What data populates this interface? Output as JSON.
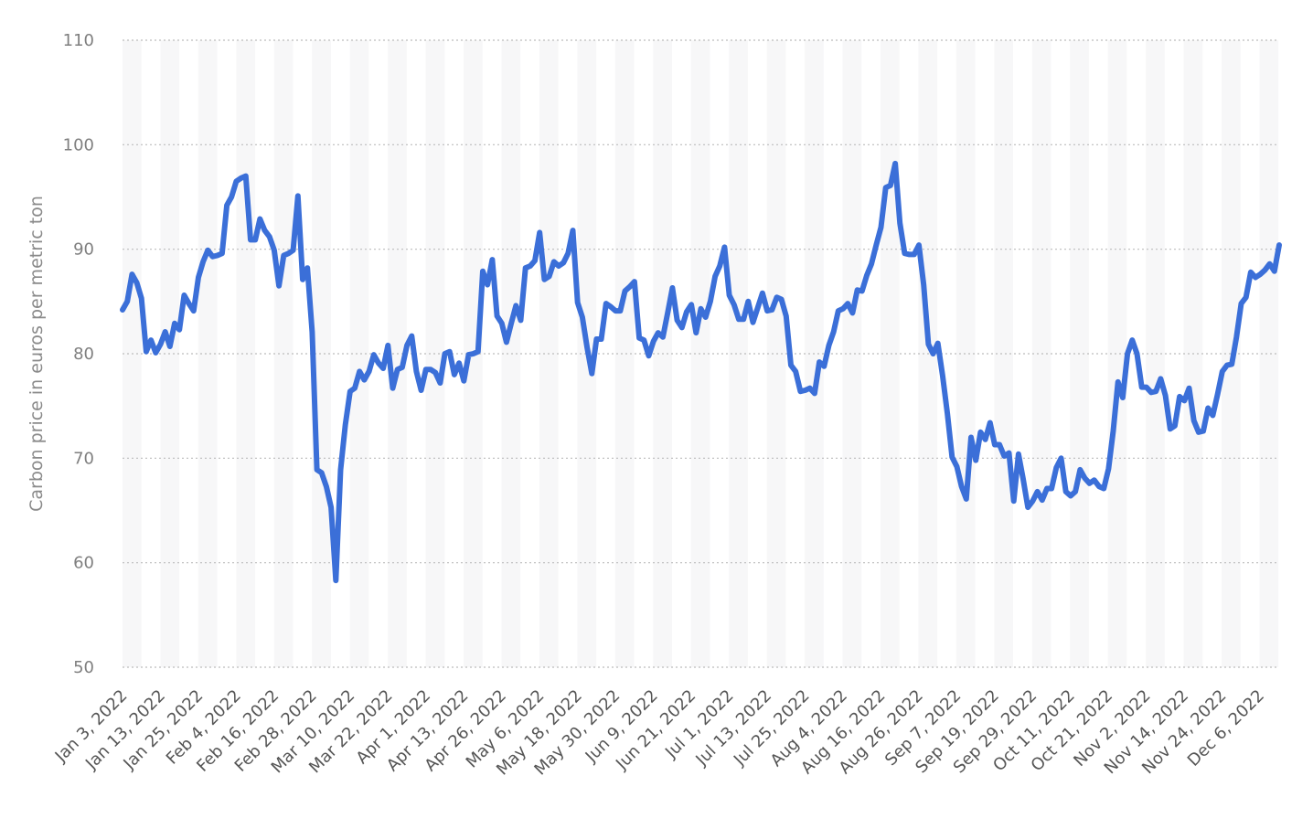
{
  "chart_data": {
    "type": "line",
    "title": "",
    "xlabel": "",
    "ylabel": "Carbon price in euros per metric ton",
    "ylim": [
      50,
      110
    ],
    "yticks": [
      50,
      60,
      70,
      80,
      90,
      100,
      110
    ],
    "grid": true,
    "legend": "none",
    "xtick_labels": [
      "Jan 3, 2022",
      "Jan 13, 2022",
      "Jan 25, 2022",
      "Feb 4, 2022",
      "Feb 16, 2022",
      "Feb 28, 2022",
      "Mar 10, 2022",
      "Mar 22, 2022",
      "Apr 1, 2022",
      "Apr 13, 2022",
      "Apr 26, 2022",
      "May 6, 2022",
      "May 18, 2022",
      "May 30, 2022",
      "Jun 9, 2022",
      "Jun 21, 2022",
      "Jul 1, 2022",
      "Jul 13, 2022",
      "Jul 25, 2022",
      "Aug 4, 2022",
      "Aug 16, 2022",
      "Aug 26, 2022",
      "Sep 7, 2022",
      "Sep 19, 2022",
      "Sep 29, 2022",
      "Oct 11, 2022",
      "Oct 21, 2022",
      "Nov 2, 2022",
      "Nov 14, 2022",
      "Nov 24, 2022",
      "Dec 6, 2022"
    ],
    "series": [
      {
        "color": "#3b6fd8",
        "values": [
          84.2,
          85.0,
          87.6,
          86.8,
          85.3,
          80.2,
          81.3,
          80.1,
          80.9,
          82.1,
          80.7,
          82.9,
          82.3,
          85.6,
          84.8,
          84.1,
          87.3,
          88.8,
          89.9,
          89.3,
          89.4,
          89.6,
          94.2,
          95.0,
          96.5,
          96.8,
          97.0,
          90.9,
          90.9,
          92.9,
          91.8,
          91.2,
          89.9,
          86.5,
          89.4,
          89.6,
          89.9,
          95.1,
          87.1,
          88.2,
          82.1,
          68.9,
          68.6,
          67.3,
          65.3,
          58.3,
          68.9,
          73.2,
          76.4,
          76.7,
          78.3,
          77.5,
          78.3,
          79.9,
          79.1,
          78.6,
          80.8,
          76.7,
          78.5,
          78.7,
          80.8,
          81.7,
          78.3,
          76.5,
          78.5,
          78.5,
          78.2,
          77.2,
          80.0,
          80.2,
          78.0,
          79.1,
          77.4,
          79.9,
          80.0,
          80.2,
          87.9,
          86.6,
          89.0,
          83.6,
          82.9,
          81.1,
          82.9,
          84.6,
          83.2,
          88.2,
          88.4,
          88.9,
          91.6,
          87.1,
          87.4,
          88.8,
          88.4,
          88.7,
          89.6,
          91.8,
          84.9,
          83.5,
          80.6,
          78.1,
          81.4,
          81.4,
          84.8,
          84.5,
          84.1,
          84.1,
          86.0,
          86.4,
          86.9,
          81.5,
          81.3,
          79.8,
          81.2,
          82.0,
          81.6,
          83.9,
          86.3,
          83.2,
          82.5,
          84.0,
          84.7,
          82.0,
          84.3,
          83.5,
          85.0,
          87.4,
          88.4,
          90.2,
          85.6,
          84.7,
          83.3,
          83.3,
          85.0,
          83.0,
          84.4,
          85.8,
          84.1,
          84.2,
          85.4,
          85.2,
          83.6,
          78.9,
          78.3,
          76.4,
          76.5,
          76.7,
          76.2,
          79.2,
          78.8,
          80.8,
          82.1,
          84.1,
          84.3,
          84.8,
          83.9,
          86.1,
          86.0,
          87.5,
          88.6,
          90.4,
          92.1,
          95.9,
          96.1,
          98.2,
          92.5,
          89.6,
          89.5,
          89.5,
          90.4,
          86.6,
          80.9,
          80.0,
          81.0,
          77.9,
          74.3,
          70.1,
          69.2,
          67.3,
          66.1,
          72.0,
          69.8,
          72.5,
          71.8,
          73.4,
          71.3,
          71.3,
          70.2,
          70.5,
          65.9,
          70.4,
          68.0,
          65.3,
          65.9,
          66.8,
          66.0,
          67.1,
          67.1,
          69.1,
          70.0,
          66.8,
          66.4,
          66.8,
          68.9,
          68.1,
          67.6,
          67.9,
          67.3,
          67.1,
          69.0,
          72.6,
          77.3,
          75.8,
          80.0,
          81.3,
          80.0,
          76.8,
          76.8,
          76.3,
          76.4,
          77.6,
          76.0,
          72.8,
          73.1,
          75.9,
          75.5,
          76.7,
          73.6,
          72.5,
          72.6,
          74.8,
          74.1,
          76.1,
          78.3,
          78.9,
          79.0,
          81.6,
          84.8,
          85.4,
          87.8,
          87.3,
          87.6,
          88.0,
          88.6,
          87.9,
          90.4
        ]
      }
    ]
  }
}
